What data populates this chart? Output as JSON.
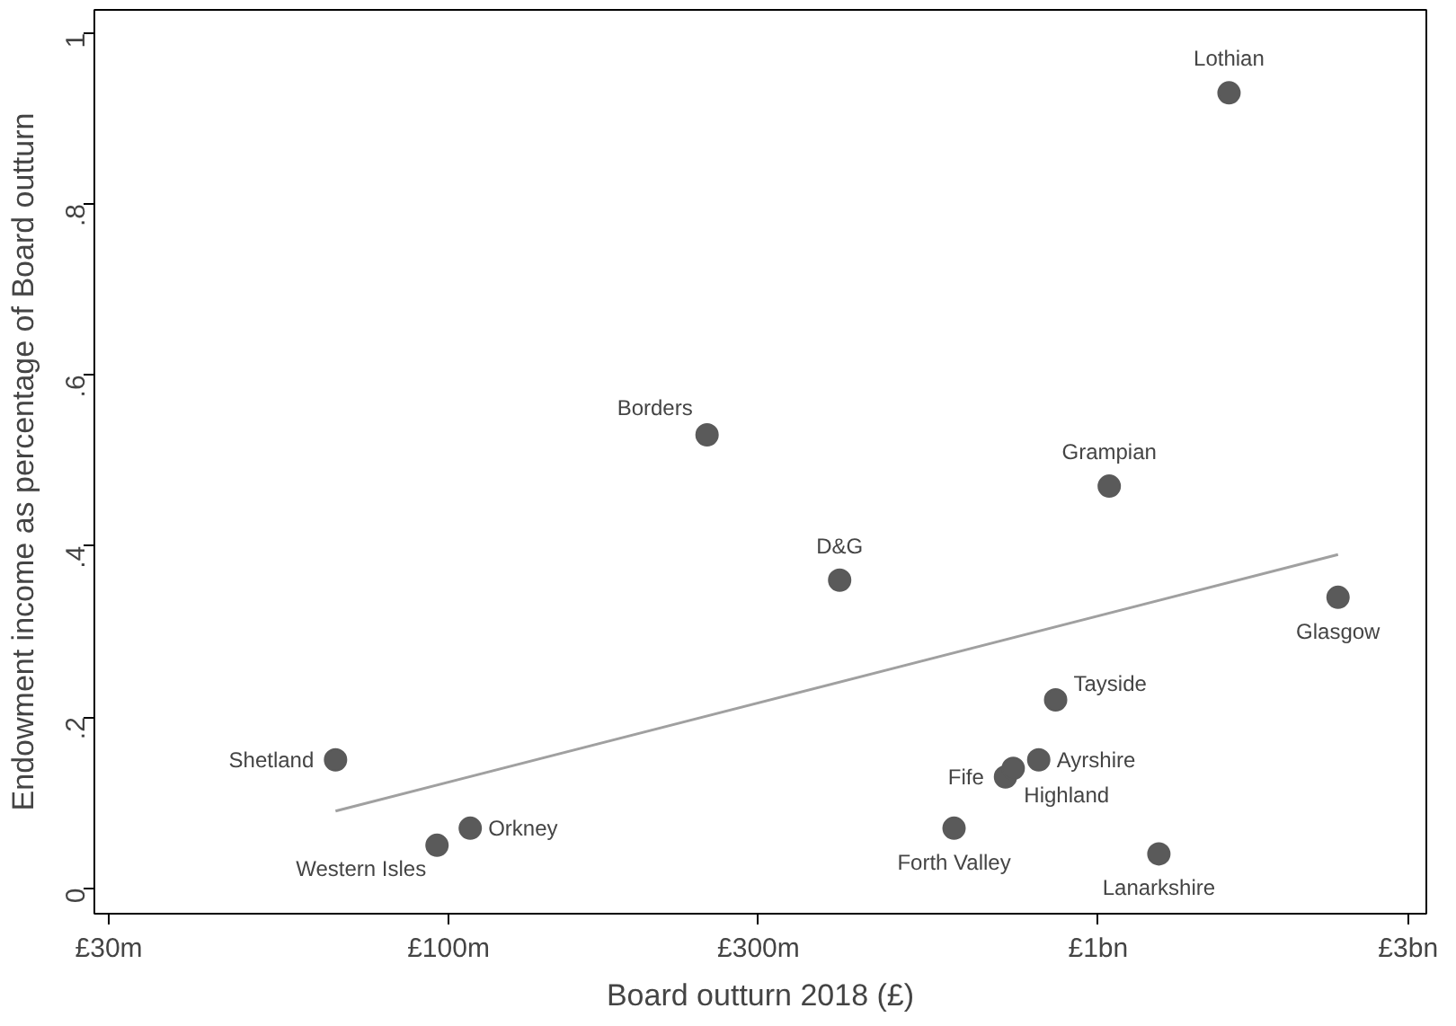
{
  "chart_data": {
    "type": "scatter",
    "xlabel": "Board outturn 2018 (£)",
    "ylabel": "Endowment income as percentage of Board outturn",
    "log": "x",
    "grid": false,
    "xlim": [
      28500000,
      3200000000
    ],
    "ylim": [
      -0.03,
      1.027
    ],
    "xticks": [
      {
        "value": 30000000,
        "label": "£30m"
      },
      {
        "value": 100000000,
        "label": "£100m"
      },
      {
        "value": 300000000,
        "label": "£300m"
      },
      {
        "value": 1000000000,
        "label": "£1bn"
      },
      {
        "value": 3000000000,
        "label": "£3bn"
      }
    ],
    "yticks": [
      {
        "value": 0,
        "label": "0"
      },
      {
        "value": 0.2,
        "label": ".2"
      },
      {
        "value": 0.4,
        "label": ".4"
      },
      {
        "value": 0.6,
        "label": ".6"
      },
      {
        "value": 0.8,
        "label": ".8"
      },
      {
        "value": 1,
        "label": "1"
      }
    ],
    "series": [
      {
        "color": "#5a5a5a",
        "marker": "circle",
        "x": [
          1590000000,
          250000000,
          1040000000,
          2340000000,
          400000000,
          860000000,
          810000000,
          720000000,
          740000000,
          67000000,
          96000000,
          108000000,
          600000000,
          1240000000
        ],
        "values": [
          0.93,
          0.53,
          0.47,
          0.34,
          0.36,
          0.22,
          0.15,
          0.13,
          0.14,
          0.15,
          0.05,
          0.07,
          0.07,
          0.04
        ]
      },
      {
        "type": "line",
        "color": "#a0a0a0",
        "x": [
          67000000,
          2340000000
        ],
        "values": [
          0.09,
          0.39
        ]
      }
    ],
    "annotations": [
      {
        "text": "Lothian",
        "x": 1590000000,
        "y": 0.93
      },
      {
        "text": "Borders",
        "x": 250000000,
        "y": 0.53
      },
      {
        "text": "Grampian",
        "x": 1040000000,
        "y": 0.47
      },
      {
        "text": "Glasgow",
        "x": 2340000000,
        "y": 0.34
      },
      {
        "text": "D&G",
        "x": 400000000,
        "y": 0.36
      },
      {
        "text": "Tayside",
        "x": 860000000,
        "y": 0.22
      },
      {
        "text": "Ayrshire",
        "x": 810000000,
        "y": 0.15
      },
      {
        "text": "Fife",
        "x": 720000000,
        "y": 0.13
      },
      {
        "text": "Highland",
        "x": 740000000,
        "y": 0.14
      },
      {
        "text": "Shetland",
        "x": 67000000,
        "y": 0.15
      },
      {
        "text": "Western Isles",
        "x": 96000000,
        "y": 0.05
      },
      {
        "text": "Orkney",
        "x": 108000000,
        "y": 0.07
      },
      {
        "text": "Forth Valley",
        "x": 600000000,
        "y": 0.07
      },
      {
        "text": "Lanarkshire",
        "x": 1240000000,
        "y": 0.04
      }
    ]
  }
}
